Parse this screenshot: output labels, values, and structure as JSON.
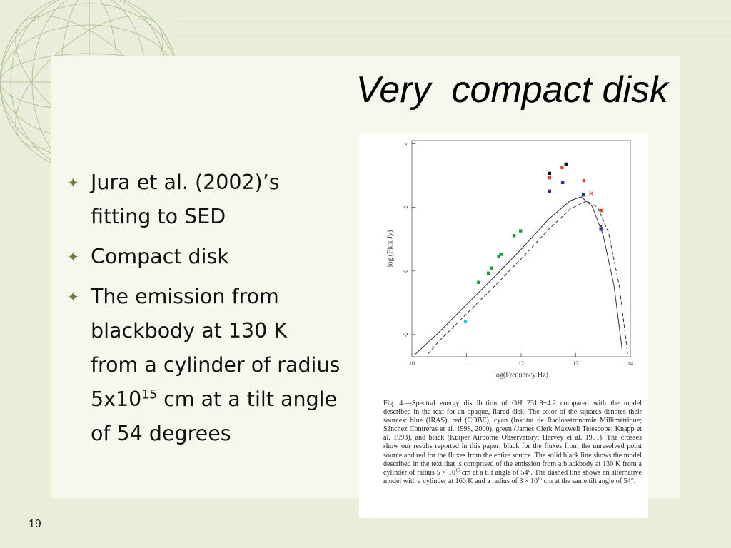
{
  "slide": {
    "title": "Very  compact disk",
    "bullets": [
      [
        {
          "text": "Jura et al. (2002)’s fitting to SED"
        }
      ],
      [
        {
          "text": "Compact disk"
        }
      ],
      [
        {
          "text": "The emission from blackbody at 130 K from a cylinder of radius 5x10"
        },
        {
          "sup": "15"
        },
        {
          "text": " cm at a tilt angle of 54 degrees"
        }
      ]
    ],
    "page_number": "19"
  },
  "figure": {
    "chart_data": {
      "type": "scatter",
      "xlabel": "log(Frequency Hz)",
      "ylabel": "log (Flux Jy)",
      "xlim": [
        10,
        14
      ],
      "ylim": [
        -2.7,
        4.1
      ],
      "xticks": [
        10,
        11,
        12,
        13,
        14
      ],
      "yticks": [
        -2,
        0,
        2,
        4
      ],
      "series": [
        {
          "type": "line",
          "color": "#333333",
          "dash": false,
          "x": [
            10.05,
            10.5,
            11,
            11.5,
            12,
            12.5,
            12.9,
            13.1,
            13.3,
            13.5,
            13.7,
            13.85
          ],
          "y": [
            -2.64,
            -1.92,
            -1.06,
            -0.2,
            0.68,
            1.62,
            2.21,
            2.33,
            2.03,
            1.13,
            -0.45,
            -2.48
          ]
        },
        {
          "type": "line",
          "color": "#333333",
          "dash": true,
          "x": [
            10.3,
            10.5,
            11,
            11.5,
            12,
            12.5,
            12.9,
            13.2,
            13.4,
            13.6,
            13.8,
            13.95
          ],
          "y": [
            -2.6,
            -2.2,
            -1.35,
            -0.5,
            0.38,
            1.3,
            1.95,
            2.2,
            2.0,
            1.2,
            -0.5,
            -2.6
          ]
        },
        {
          "type": "scatter",
          "marker": "square",
          "color": "#22c4e8",
          "x": [
            10.98
          ],
          "y": [
            -1.58
          ]
        },
        {
          "type": "scatter",
          "marker": "square",
          "color": "#1a9a3a",
          "x": [
            11.22,
            11.4,
            11.46,
            11.59,
            11.63,
            11.87,
            11.99
          ],
          "y": [
            -0.36,
            -0.07,
            0.09,
            0.45,
            0.52,
            1.11,
            1.26
          ]
        },
        {
          "type": "scatter",
          "marker": "square",
          "color": "#2b2f9a",
          "x": [
            12.52,
            12.76,
            13.14,
            13.46
          ],
          "y": [
            2.51,
            2.78,
            2.39,
            1.31
          ]
        },
        {
          "type": "scatter",
          "marker": "square",
          "color": "#e04020",
          "x": [
            12.52,
            12.75,
            13.15,
            13.46
          ],
          "y": [
            2.93,
            3.25,
            2.84,
            1.9
          ]
        },
        {
          "type": "scatter",
          "marker": "square",
          "color": "#111111",
          "x": [
            12.52,
            12.82
          ],
          "y": [
            3.07,
            3.36
          ]
        },
        {
          "type": "scatter",
          "marker": "cross",
          "color": "#e04020",
          "x": [
            13.28
          ],
          "y": [
            2.44
          ]
        },
        {
          "type": "scatter",
          "marker": "cross",
          "color": "#111111",
          "x": [
            13.46
          ],
          "y": [
            1.4
          ]
        }
      ]
    },
    "caption": [
      {
        "text": "Fig. 4.—Spectral energy distribution of OH 231.8+4.2 compared with the model described in the text for an opaque, flared disk. The color of the squares denotes their sources: blue (IRAS), red (COBE), cyan (Institut de Radioastronomie Millimétrique; Sánchez Contreras et al. 1998, 2000), green (James Clerk Maxwell Telescope; Knapp et al. 1993), and black (Kuiper Airborne Observatory; Harvey et al. 1991). The crosses show our results reported in this paper; black for the fluxes from the unresolved point source and red for the fluxes from the entire source. The solid black line shows the model described in the text that is comprised of the emission from a blackbody at 130 K from a cylinder of radius 5 × 10"
      },
      {
        "sup": "15"
      },
      {
        "text": " cm at a tilt angle of 54°. The dashed line shows an alternative model with a cylinder at 160 K and a radius of 3 × 10"
      },
      {
        "sup": "15"
      },
      {
        "text": " cm at the same tilt angle of 54°."
      }
    ]
  }
}
